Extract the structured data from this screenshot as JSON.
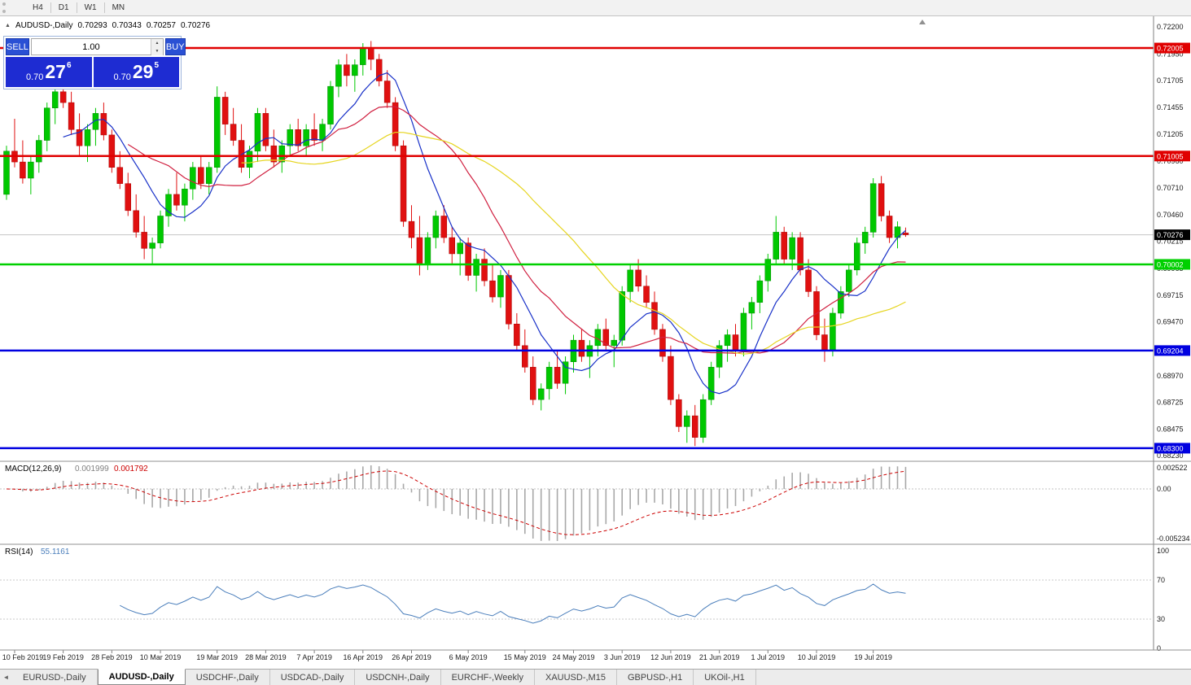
{
  "toolbar": {
    "timeframes": [
      {
        "label": "H4",
        "active": false
      },
      {
        "label": "D1",
        "active": true
      },
      {
        "label": "W1",
        "active": false
      },
      {
        "label": "MN",
        "active": false
      }
    ]
  },
  "symbol_info": {
    "arrow": "▲",
    "label": "AUDUSD-,Daily",
    "open": "0.70293",
    "high": "0.70343",
    "low": "0.70257",
    "close": "0.70276"
  },
  "trade_panel": {
    "sell_label": "SELL",
    "buy_label": "BUY",
    "volume": "1.00",
    "sell_price": {
      "base": "0.70",
      "big": "27",
      "sup": "6"
    },
    "buy_price": {
      "base": "0.70",
      "big": "29",
      "sup": "5"
    }
  },
  "chart_data": {
    "type": "candlestick",
    "title": "AUDUSD-,Daily",
    "background": "#ffffff",
    "up_color": "#00c800",
    "up_stroke": "#008a00",
    "down_color": "#e01010",
    "down_stroke": "#a80000",
    "price_axis": {
      "min": 0.68194,
      "max": 0.72299,
      "tick_labels": [
        "0.72200",
        "0.71950",
        "0.71705",
        "0.71455",
        "0.71205",
        "0.70960",
        "0.70710",
        "0.70460",
        "0.70215",
        "0.69965",
        "0.69715",
        "0.69470",
        "0.69220",
        "0.68970",
        "0.68725",
        "0.68475",
        "0.68230"
      ]
    },
    "horizontal_lines": [
      {
        "price": 0.72005,
        "label": "0.72005",
        "color": "#e00000"
      },
      {
        "price": 0.71005,
        "label": "0.71005",
        "color": "#e00000"
      },
      {
        "price": 0.70002,
        "label": "0.70002",
        "color": "#00d000"
      },
      {
        "price": 0.69204,
        "label": "0.69204",
        "color": "#0000e0"
      },
      {
        "price": 0.683,
        "label": "0.68300",
        "color": "#0000e0"
      }
    ],
    "current_price": {
      "value": 0.70276,
      "label": "0.70276",
      "color": "#000000"
    },
    "moving_averages": [
      {
        "period": 8,
        "color": "#1830c8"
      },
      {
        "period": 16,
        "color": "#d02040"
      },
      {
        "period": 30,
        "color": "#e6d520"
      }
    ],
    "candles": [
      [
        0.7065,
        0.711,
        0.706,
        0.7105
      ],
      [
        0.7105,
        0.7135,
        0.709,
        0.7095
      ],
      [
        0.7095,
        0.7115,
        0.7075,
        0.708
      ],
      [
        0.708,
        0.71,
        0.7065,
        0.7095
      ],
      [
        0.7095,
        0.712,
        0.7085,
        0.7115
      ],
      [
        0.7115,
        0.715,
        0.7105,
        0.7145
      ],
      [
        0.7145,
        0.7165,
        0.713,
        0.716
      ],
      [
        0.716,
        0.7175,
        0.7145,
        0.715
      ],
      [
        0.715,
        0.716,
        0.712,
        0.7125
      ],
      [
        0.7125,
        0.714,
        0.71,
        0.711
      ],
      [
        0.711,
        0.713,
        0.7095,
        0.7125
      ],
      [
        0.7125,
        0.7145,
        0.711,
        0.714
      ],
      [
        0.714,
        0.715,
        0.7115,
        0.712
      ],
      [
        0.712,
        0.7125,
        0.7085,
        0.709
      ],
      [
        0.709,
        0.7105,
        0.707,
        0.7075
      ],
      [
        0.7075,
        0.7085,
        0.7045,
        0.705
      ],
      [
        0.705,
        0.7065,
        0.7025,
        0.703
      ],
      [
        0.703,
        0.7045,
        0.7005,
        0.7015
      ],
      [
        0.7015,
        0.7025,
        0.7,
        0.702
      ],
      [
        0.702,
        0.705,
        0.7015,
        0.7045
      ],
      [
        0.7045,
        0.707,
        0.7035,
        0.7065
      ],
      [
        0.7065,
        0.7085,
        0.705,
        0.7055
      ],
      [
        0.7055,
        0.7075,
        0.704,
        0.707
      ],
      [
        0.707,
        0.7095,
        0.706,
        0.709
      ],
      [
        0.709,
        0.71,
        0.707,
        0.7075
      ],
      [
        0.7075,
        0.7095,
        0.7065,
        0.709
      ],
      [
        0.709,
        0.7165,
        0.7085,
        0.7155
      ],
      [
        0.7155,
        0.716,
        0.712,
        0.713
      ],
      [
        0.713,
        0.7145,
        0.711,
        0.7115
      ],
      [
        0.7115,
        0.713,
        0.7085,
        0.709
      ],
      [
        0.709,
        0.711,
        0.708,
        0.7105
      ],
      [
        0.7105,
        0.7145,
        0.7095,
        0.714
      ],
      [
        0.714,
        0.7145,
        0.7105,
        0.711
      ],
      [
        0.711,
        0.7125,
        0.709,
        0.7095
      ],
      [
        0.7095,
        0.7115,
        0.7085,
        0.711
      ],
      [
        0.711,
        0.713,
        0.71,
        0.7125
      ],
      [
        0.7125,
        0.7135,
        0.7105,
        0.711
      ],
      [
        0.711,
        0.713,
        0.71,
        0.7125
      ],
      [
        0.7125,
        0.714,
        0.711,
        0.7115
      ],
      [
        0.7115,
        0.7135,
        0.7105,
        0.713
      ],
      [
        0.713,
        0.717,
        0.7125,
        0.7165
      ],
      [
        0.7165,
        0.719,
        0.7155,
        0.7185
      ],
      [
        0.7185,
        0.7195,
        0.7165,
        0.7175
      ],
      [
        0.7175,
        0.719,
        0.716,
        0.7185
      ],
      [
        0.7185,
        0.7205,
        0.7175,
        0.72
      ],
      [
        0.72,
        0.7207,
        0.718,
        0.719
      ],
      [
        0.719,
        0.7195,
        0.7165,
        0.717
      ],
      [
        0.717,
        0.718,
        0.7145,
        0.715
      ],
      [
        0.715,
        0.7155,
        0.7105,
        0.711
      ],
      [
        0.711,
        0.7115,
        0.7035,
        0.704
      ],
      [
        0.704,
        0.7055,
        0.7015,
        0.7025
      ],
      [
        0.7025,
        0.7045,
        0.699,
        0.7
      ],
      [
        0.7,
        0.703,
        0.6995,
        0.7025
      ],
      [
        0.7025,
        0.705,
        0.7015,
        0.7045
      ],
      [
        0.7045,
        0.7055,
        0.702,
        0.7025
      ],
      [
        0.7025,
        0.7035,
        0.7,
        0.701
      ],
      [
        0.701,
        0.7025,
        0.699,
        0.702
      ],
      [
        0.702,
        0.7025,
        0.6985,
        0.699
      ],
      [
        0.699,
        0.701,
        0.6975,
        0.7005
      ],
      [
        0.7005,
        0.7015,
        0.698,
        0.6985
      ],
      [
        0.6985,
        0.7,
        0.6965,
        0.697
      ],
      [
        0.697,
        0.6995,
        0.696,
        0.699
      ],
      [
        0.699,
        0.6995,
        0.694,
        0.6945
      ],
      [
        0.6945,
        0.6955,
        0.692,
        0.6925
      ],
      [
        0.6925,
        0.694,
        0.69,
        0.6905
      ],
      [
        0.6905,
        0.6915,
        0.687,
        0.6875
      ],
      [
        0.6875,
        0.689,
        0.6865,
        0.6885
      ],
      [
        0.6885,
        0.691,
        0.6875,
        0.6905
      ],
      [
        0.6905,
        0.692,
        0.6885,
        0.689
      ],
      [
        0.689,
        0.6915,
        0.688,
        0.691
      ],
      [
        0.691,
        0.6935,
        0.69,
        0.693
      ],
      [
        0.693,
        0.694,
        0.691,
        0.6915
      ],
      [
        0.6915,
        0.693,
        0.6895,
        0.6925
      ],
      [
        0.6925,
        0.6945,
        0.6915,
        0.694
      ],
      [
        0.694,
        0.695,
        0.692,
        0.6925
      ],
      [
        0.6925,
        0.6935,
        0.6905,
        0.693
      ],
      [
        0.693,
        0.698,
        0.6925,
        0.6975
      ],
      [
        0.6975,
        0.7,
        0.6965,
        0.6995
      ],
      [
        0.6995,
        0.7005,
        0.6975,
        0.698
      ],
      [
        0.698,
        0.699,
        0.696,
        0.6965
      ],
      [
        0.6965,
        0.6975,
        0.6935,
        0.694
      ],
      [
        0.694,
        0.6945,
        0.691,
        0.6915
      ],
      [
        0.6915,
        0.6925,
        0.687,
        0.6875
      ],
      [
        0.6875,
        0.688,
        0.6845,
        0.685
      ],
      [
        0.685,
        0.6865,
        0.6835,
        0.686
      ],
      [
        0.686,
        0.687,
        0.6832,
        0.684
      ],
      [
        0.684,
        0.688,
        0.6835,
        0.6875
      ],
      [
        0.6875,
        0.691,
        0.687,
        0.6905
      ],
      [
        0.6905,
        0.693,
        0.6895,
        0.6925
      ],
      [
        0.6925,
        0.694,
        0.691,
        0.6935
      ],
      [
        0.6935,
        0.6945,
        0.6915,
        0.692
      ],
      [
        0.692,
        0.696,
        0.6915,
        0.6955
      ],
      [
        0.6955,
        0.697,
        0.694,
        0.6965
      ],
      [
        0.6965,
        0.699,
        0.6955,
        0.6985
      ],
      [
        0.6985,
        0.701,
        0.6975,
        0.7005
      ],
      [
        0.7005,
        0.7045,
        0.7,
        0.703
      ],
      [
        0.703,
        0.7035,
        0.7,
        0.7005
      ],
      [
        0.7005,
        0.703,
        0.6995,
        0.7025
      ],
      [
        0.7025,
        0.703,
        0.699,
        0.6995
      ],
      [
        0.6995,
        0.7005,
        0.697,
        0.6975
      ],
      [
        0.6975,
        0.698,
        0.693,
        0.6935
      ],
      [
        0.6935,
        0.695,
        0.691,
        0.692
      ],
      [
        0.692,
        0.696,
        0.6915,
        0.6955
      ],
      [
        0.6955,
        0.698,
        0.695,
        0.6975
      ],
      [
        0.6975,
        0.7,
        0.697,
        0.6995
      ],
      [
        0.6995,
        0.7025,
        0.699,
        0.702
      ],
      [
        0.702,
        0.7035,
        0.701,
        0.703
      ],
      [
        0.703,
        0.708,
        0.7025,
        0.7075
      ],
      [
        0.7075,
        0.7082,
        0.704,
        0.7045
      ],
      [
        0.7045,
        0.705,
        0.702,
        0.7025
      ],
      [
        0.7025,
        0.704,
        0.7015,
        0.7035
      ],
      [
        0.70293,
        0.70343,
        0.70257,
        0.70276
      ]
    ],
    "date_labels": [
      {
        "text": "10 Feb 2019",
        "index": 1
      },
      {
        "text": "19 Feb 2019",
        "index": 7
      },
      {
        "text": "28 Feb 2019",
        "index": 13
      },
      {
        "text": "10 Mar 2019",
        "index": 19
      },
      {
        "text": "19 Mar 2019",
        "index": 26
      },
      {
        "text": "28 Mar 2019",
        "index": 32
      },
      {
        "text": "7 Apr 2019",
        "index": 38
      },
      {
        "text": "16 Apr 2019",
        "index": 44
      },
      {
        "text": "26 Apr 2019",
        "index": 50
      },
      {
        "text": "6 May 2019",
        "index": 57
      },
      {
        "text": "15 May 2019",
        "index": 64
      },
      {
        "text": "24 May 2019",
        "index": 70
      },
      {
        "text": "3 Jun 2019",
        "index": 76
      },
      {
        "text": "12 Jun 2019",
        "index": 82
      },
      {
        "text": "21 Jun 2019",
        "index": 88
      },
      {
        "text": "1 Jul 2019",
        "index": 94
      },
      {
        "text": "10 Jul 2019",
        "index": 100
      },
      {
        "text": "19 Jul 2019",
        "index": 107
      }
    ],
    "macd": {
      "name": "MACD(12,26,9)",
      "main_value": "0.001999",
      "signal_value": "0.001792",
      "fast": 12,
      "slow": 26,
      "signal_period": 9,
      "axis_max_label": "0.002522",
      "axis_zero_label": "0.00",
      "axis_min_label": "-0.005234",
      "histogram_color": "#a8a8a8",
      "signal_color": "#cc0000"
    },
    "rsi": {
      "name": "RSI(14)",
      "value": "55.1161",
      "period": 14,
      "line_color": "#4a7ebb",
      "levels": [
        70,
        30
      ],
      "axis_labels": [
        "100",
        "70",
        "30",
        "0"
      ]
    }
  },
  "tabs": {
    "scroll_left": "◄",
    "items": [
      {
        "label": "EURUSD-,Daily",
        "active": false
      },
      {
        "label": "AUDUSD-,Daily",
        "active": true
      },
      {
        "label": "USDCHF-,Daily",
        "active": false
      },
      {
        "label": "USDCAD-,Daily",
        "active": false
      },
      {
        "label": "USDCNH-,Daily",
        "active": false
      },
      {
        "label": "EURCHF-,Weekly",
        "active": false
      },
      {
        "label": "XAUUSD-,M15",
        "active": false
      },
      {
        "label": "GBPUSD-,H1",
        "active": false
      },
      {
        "label": "UKOil-,H1",
        "active": false
      }
    ]
  }
}
